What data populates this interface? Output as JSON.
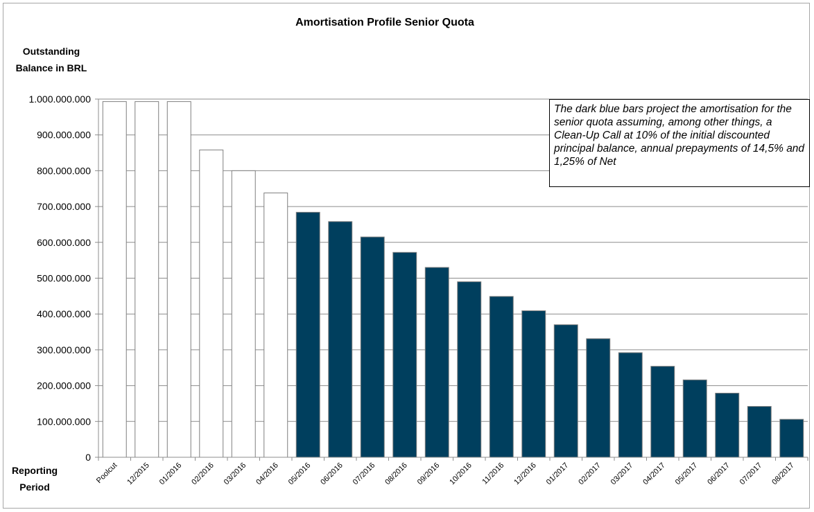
{
  "chart_data": {
    "type": "bar",
    "title": "Amortisation Profile Senior Quota",
    "ylabel_lines": [
      "Outstanding",
      "Balance in BRL"
    ],
    "xlabel_lines": [
      "Reporting",
      "Period"
    ],
    "ylim": [
      0,
      1000000000
    ],
    "ytick_labels": [
      "0",
      "100.000.000",
      "200.000.000",
      "300.000.000",
      "400.000.000",
      "500.000.000",
      "600.000.000",
      "700.000.000",
      "800.000.000",
      "900.000.000",
      "1.000.000.000"
    ],
    "grid": true,
    "categories": [
      "Poolcut",
      "12/2015",
      "01/2016",
      "02/2016",
      "03/2016",
      "04/2016",
      "05/2016",
      "06/2016",
      "07/2016",
      "08/2016",
      "09/2016",
      "10/2016",
      "11/2016",
      "12/2016",
      "01/2017",
      "02/2017",
      "03/2017",
      "04/2017",
      "05/2017",
      "06/2017",
      "07/2017",
      "08/2017"
    ],
    "values": [
      993000000,
      993000000,
      993000000,
      858000000,
      800000000,
      738000000,
      684000000,
      658000000,
      615000000,
      572000000,
      530000000,
      490000000,
      449000000,
      409000000,
      370000000,
      331000000,
      292000000,
      254000000,
      216000000,
      179000000,
      142000000,
      106000000
    ],
    "bar_kind": [
      "actual",
      "actual",
      "actual",
      "actual",
      "actual",
      "actual",
      "projected",
      "projected",
      "projected",
      "projected",
      "projected",
      "projected",
      "projected",
      "projected",
      "projected",
      "projected",
      "projected",
      "projected",
      "projected",
      "projected",
      "projected",
      "projected"
    ],
    "colors": {
      "actual_fill": "#ffffff",
      "actual_stroke": "#7f7f7f",
      "projected_fill": "#003f5e",
      "projected_stroke": "#7f7f7f",
      "grid": "#8c8c8c"
    },
    "annotation": "The dark blue bars project the amortisation for the senior quota assuming, among other things, a Clean-Up Call at 10% of the initial discounted principal balance, annual prepayments of 14,5% and 1,25% of Net"
  }
}
